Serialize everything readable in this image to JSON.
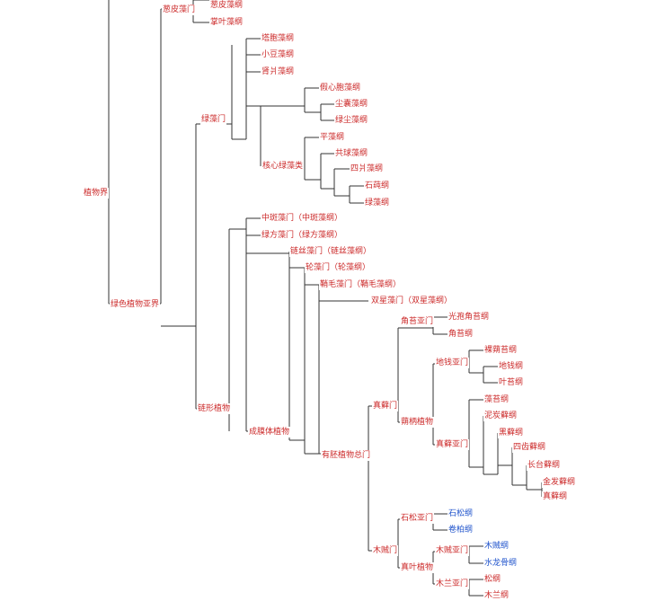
{
  "colors": {
    "red": "#cc2b2b",
    "blue": "#2255cc",
    "line": "#333333"
  },
  "nodes": {
    "plantae": "植物界",
    "glaucophyta": "葱皮藻门",
    "glaucophyta_class": "葱皮藻纲",
    "rhodophyta_like": "掌叶藻纲",
    "chlorophyta": "绿藻门",
    "c_trebouxio": "塔胞藻纲",
    "c_xiaodou": "小豆藻纲",
    "c_shenxing": "肾爿藻纲",
    "c_pseudo": "假心胞藻纲",
    "c_chenang": "尘囊藻纲",
    "c_lvchen": "绿尘藻纲",
    "core_chloro": "核心绿藻类",
    "c_ping": "平藻纲",
    "c_gongqiu": "共球藻纲",
    "c_sipian": "四爿藻纲",
    "c_shichun": "石莼纲",
    "c_lvzao": "绿藻纲",
    "viridiplantae": "绿色植物亚界",
    "streptophyta": "链形植物",
    "mesostigma": "中斑藻门（中斑藻纲）",
    "chlorokybus": "绿方藻门（绿方藻纲）",
    "klebsormidium": "链丝藻门（链丝藻纲）",
    "charophyta": "轮藻门（轮藻纲）",
    "coleochaete": "鞘毛藻门（鞘毛藻纲）",
    "zygnema": "双星藻门（双星藻纲）",
    "phragmoplast": "成膜体植物",
    "embryophyta": "有胚植物总门",
    "bryophyta_s": "真藓门",
    "hornwort_sub": "角苔亚门",
    "c_guangbao": "光孢角苔纲",
    "c_jiaotai": "角苔纲",
    "setaphyta": "蒴柄植物",
    "liverwort_sub": "地钱亚门",
    "c_luoshi": "裸蒴苔纲",
    "c_diqian": "地钱纲",
    "c_yetai": "叶苔纲",
    "moss_sub": "真藓亚门",
    "c_zaotai": "藻苔纲",
    "c_nitan": "泥炭藓纲",
    "c_heixian": "黑藓纲",
    "c_sichi": "四齿藓纲",
    "c_changtai": "长台藓纲",
    "c_jinfa": "金发藓纲",
    "c_zhenxian": "真藓纲",
    "tracheophyta": "木贼门",
    "lyco_sub": "石松亚门",
    "c_shisong": "石松纲",
    "c_juanbai": "卷柏纲",
    "euphyllophyta": "真叶植物",
    "equis_sub": "木贼亚门",
    "c_muzei": "木贼纲",
    "c_shuilong": "水龙骨纲",
    "magno_sub": "木兰亚门",
    "c_song": "松纲",
    "c_mulan": "木兰纲"
  }
}
